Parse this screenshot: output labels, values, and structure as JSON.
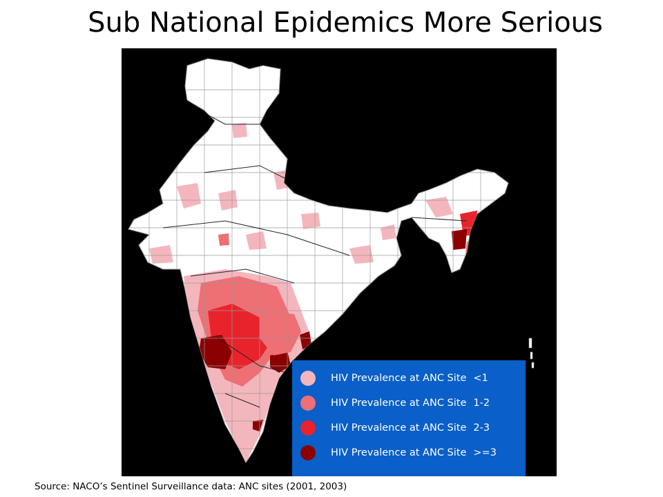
{
  "title": "Sub National Epidemics More Serious",
  "map": {
    "background": "#000000",
    "land_color": "#ffffff",
    "category_colors": [
      "#f4b6bd",
      "#ee6f74",
      "#e8232c",
      "#8b0000"
    ]
  },
  "legend": {
    "background": "#0a5fc8",
    "items": [
      {
        "label": "HIV Prevalence at ANC Site",
        "range": "<1",
        "color": "#f4b6bd"
      },
      {
        "label": "HIV Prevalence at ANC Site",
        "range": "1-2",
        "color": "#ee6f74"
      },
      {
        "label": "HIV Prevalence at ANC Site",
        "range": "2-3",
        "color": "#e8232c"
      },
      {
        "label": "HIV Prevalence at ANC Site",
        "range": ">=3",
        "color": "#8b0000"
      }
    ]
  },
  "source": "Source: NACO’s Sentinel Surveillance data: ANC sites (2001, 2003)"
}
